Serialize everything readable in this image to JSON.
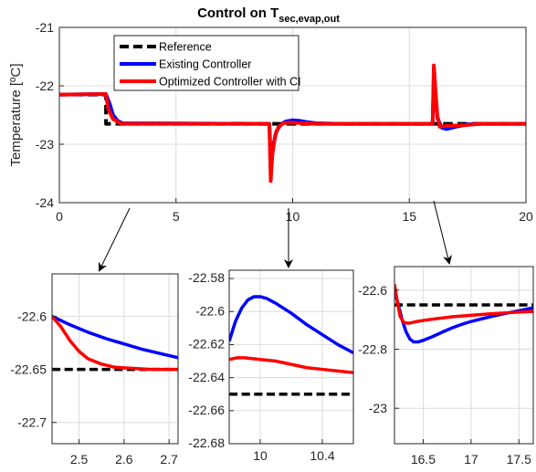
{
  "title": {
    "main": "Control on T",
    "sub": "sec,evap,out"
  },
  "colors": {
    "reference": "#000000",
    "existing": "#0000ff",
    "optimized": "#ff0000",
    "grid": "#dcdcdc",
    "axis": "#262626"
  },
  "chart_data": [
    {
      "type": "line",
      "panel": "main",
      "title": "Control on T_sec,evap,out",
      "ylabel": "Temperature [ºC]",
      "xlabel": "",
      "xlim": [
        0,
        20
      ],
      "ylim": [
        -24,
        -21
      ],
      "xticks": [
        0,
        5,
        10,
        15,
        20
      ],
      "yticks": [
        -24,
        -23,
        -22,
        -21
      ],
      "xtick_labels": [
        "0",
        "5",
        "10",
        "15",
        "20"
      ],
      "ytick_labels": [
        "-24",
        "-23",
        "-22",
        "-21"
      ],
      "grid": true,
      "legend_position": "top-left",
      "series": [
        {
          "name": "Reference",
          "style": "dashed",
          "color": "#000000",
          "x": [
            0,
            2.0,
            2.0,
            20
          ],
          "y": [
            -22.15,
            -22.15,
            -22.65,
            -22.65
          ]
        },
        {
          "name": "Existing Controller",
          "style": "solid",
          "color": "#0000ff",
          "x": [
            0,
            1.99,
            2.15,
            2.3,
            2.5,
            2.7,
            9.0,
            9.08,
            9.15,
            9.3,
            9.5,
            9.7,
            10.0,
            10.3,
            10.6,
            11.0,
            12,
            16.0,
            16.06,
            16.12,
            16.2,
            16.4,
            16.6,
            17.0,
            17.5,
            18,
            20
          ],
          "y": [
            -22.15,
            -22.14,
            -22.3,
            -22.5,
            -22.6,
            -22.64,
            -22.65,
            -23.45,
            -23.05,
            -22.78,
            -22.66,
            -22.61,
            -22.59,
            -22.6,
            -22.62,
            -22.64,
            -22.65,
            -22.65,
            -21.7,
            -22.15,
            -22.55,
            -22.72,
            -22.74,
            -22.7,
            -22.66,
            -22.65,
            -22.65
          ]
        },
        {
          "name": "Optimized Controller with CI",
          "style": "solid",
          "color": "#ff0000",
          "x": [
            0,
            1.99,
            2.1,
            2.3,
            2.45,
            2.6,
            2.7,
            9.0,
            9.06,
            9.12,
            9.25,
            9.4,
            9.6,
            9.8,
            10.0,
            10.5,
            11,
            12,
            16.0,
            16.05,
            16.1,
            16.2,
            16.3,
            16.5,
            17.0,
            17.5,
            18,
            20
          ],
          "y": [
            -22.15,
            -22.14,
            -22.4,
            -22.57,
            -22.6,
            -22.64,
            -22.65,
            -22.65,
            -23.63,
            -23.2,
            -22.85,
            -22.7,
            -22.64,
            -22.63,
            -22.63,
            -22.64,
            -22.65,
            -22.65,
            -22.65,
            -21.65,
            -21.95,
            -22.5,
            -22.7,
            -22.69,
            -22.68,
            -22.67,
            -22.65,
            -22.65
          ]
        }
      ]
    },
    {
      "type": "line",
      "panel": "zoom-1",
      "xlim": [
        2.44,
        2.72
      ],
      "ylim": [
        -22.72,
        -22.56
      ],
      "xticks": [
        2.5,
        2.6,
        2.7
      ],
      "yticks": [
        -22.7,
        -22.65,
        -22.6
      ],
      "xtick_labels": [
        "2.5",
        "2.6",
        "2.7"
      ],
      "ytick_labels": [
        "-22.7",
        "-22.65",
        "-22.6"
      ],
      "grid": true,
      "series": [
        {
          "name": "Reference",
          "style": "dashed",
          "color": "#000000",
          "x": [
            2.44,
            2.72
          ],
          "y": [
            -22.65,
            -22.65
          ]
        },
        {
          "name": "Existing Controller",
          "style": "solid",
          "color": "#0000ff",
          "x": [
            2.44,
            2.48,
            2.52,
            2.56,
            2.6,
            2.64,
            2.68,
            2.72
          ],
          "y": [
            -22.6,
            -22.608,
            -22.615,
            -22.621,
            -22.626,
            -22.631,
            -22.635,
            -22.639
          ]
        },
        {
          "name": "Optimized Controller with CI",
          "style": "solid",
          "color": "#ff0000",
          "x": [
            2.44,
            2.46,
            2.48,
            2.5,
            2.52,
            2.55,
            2.58,
            2.62,
            2.66,
            2.7,
            2.72
          ],
          "y": [
            -22.6,
            -22.61,
            -22.623,
            -22.633,
            -22.64,
            -22.645,
            -22.648,
            -22.649,
            -22.65,
            -22.65,
            -22.65
          ]
        }
      ]
    },
    {
      "type": "line",
      "panel": "zoom-2",
      "xlim": [
        9.8,
        10.6
      ],
      "ylim": [
        -22.68,
        -22.575
      ],
      "xticks": [
        10,
        10.4
      ],
      "yticks": [
        -22.68,
        -22.66,
        -22.64,
        -22.62,
        -22.6,
        -22.58
      ],
      "xtick_labels": [
        "10",
        "10.4"
      ],
      "ytick_labels": [
        "-22.68",
        "-22.66",
        "-22.64",
        "-22.62",
        "-22.6",
        "-22.58"
      ],
      "grid": true,
      "series": [
        {
          "name": "Reference",
          "style": "dashed",
          "color": "#000000",
          "x": [
            9.8,
            10.6
          ],
          "y": [
            -22.65,
            -22.65
          ]
        },
        {
          "name": "Existing Controller",
          "style": "solid",
          "color": "#0000ff",
          "x": [
            9.8,
            9.84,
            9.88,
            9.92,
            9.96,
            10.0,
            10.04,
            10.1,
            10.2,
            10.3,
            10.4,
            10.5,
            10.6
          ],
          "y": [
            -22.618,
            -22.606,
            -22.598,
            -22.593,
            -22.591,
            -22.591,
            -22.592,
            -22.595,
            -22.601,
            -22.608,
            -22.614,
            -22.62,
            -22.625
          ]
        },
        {
          "name": "Optimized Controller with CI",
          "style": "solid",
          "color": "#ff0000",
          "x": [
            9.8,
            9.85,
            9.9,
            10.0,
            10.1,
            10.2,
            10.3,
            10.4,
            10.5,
            10.6
          ],
          "y": [
            -22.629,
            -22.628,
            -22.628,
            -22.629,
            -22.63,
            -22.632,
            -22.634,
            -22.635,
            -22.636,
            -22.637
          ]
        }
      ]
    },
    {
      "type": "line",
      "panel": "zoom-3",
      "xlim": [
        16.2,
        17.65
      ],
      "ylim": [
        -23.12,
        -22.52
      ],
      "xticks": [
        16.5,
        17,
        17.5
      ],
      "yticks": [
        -23,
        -22.8,
        -22.6
      ],
      "xtick_labels": [
        "16.5",
        "17",
        "17.5"
      ],
      "ytick_labels": [
        "-23",
        "-22.8",
        "-22.6"
      ],
      "grid": true,
      "series": [
        {
          "name": "Reference",
          "style": "dashed",
          "color": "#000000",
          "x": [
            16.2,
            17.65
          ],
          "y": [
            -22.65,
            -22.65
          ]
        },
        {
          "name": "Existing Controller",
          "style": "solid",
          "color": "#0000ff",
          "x": [
            16.2,
            16.24,
            16.28,
            16.32,
            16.36,
            16.4,
            16.45,
            16.5,
            16.6,
            16.7,
            16.8,
            16.9,
            17.0,
            17.2,
            17.4,
            17.65
          ],
          "y": [
            -22.6,
            -22.65,
            -22.7,
            -22.74,
            -22.765,
            -22.775,
            -22.775,
            -22.77,
            -22.757,
            -22.742,
            -22.728,
            -22.716,
            -22.706,
            -22.69,
            -22.676,
            -22.66
          ]
        },
        {
          "name": "Optimized Controller with CI",
          "style": "solid",
          "color": "#ff0000",
          "x": [
            16.2,
            16.23,
            16.26,
            16.3,
            16.35,
            16.45,
            16.6,
            16.8,
            17.0,
            17.2,
            17.4,
            17.65
          ],
          "y": [
            -22.58,
            -22.64,
            -22.69,
            -22.71,
            -22.712,
            -22.705,
            -22.698,
            -22.69,
            -22.685,
            -22.68,
            -22.676,
            -22.672
          ]
        }
      ]
    }
  ]
}
